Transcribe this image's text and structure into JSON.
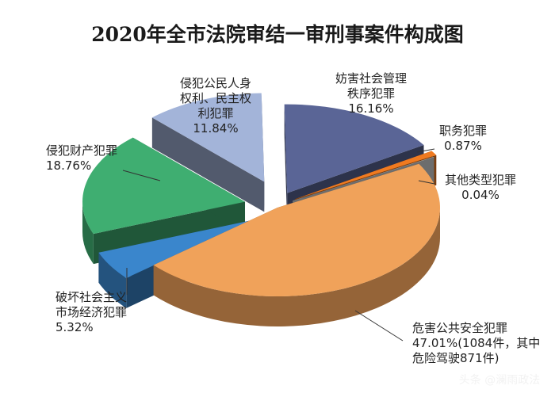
{
  "chart_data": {
    "type": "pie",
    "title": "2020年全市法院审结一审刑事案件构成图",
    "slices": [
      {
        "name": "妨害社会管理秩序犯罪",
        "label_lines": [
          "妨害社会管理",
          "秩序犯罪"
        ],
        "percent_text": "16.16%",
        "value": 16.16,
        "color": "#5a6596"
      },
      {
        "name": "职务犯罪",
        "label_lines": [
          "职务犯罪"
        ],
        "percent_text": "0.87%",
        "value": 0.87,
        "color": "#f07a20"
      },
      {
        "name": "其他类型犯罪",
        "label_lines": [
          "其他类型犯罪"
        ],
        "percent_text": "0.04%",
        "value": 0.04,
        "color": "#d9d9d9"
      },
      {
        "name": "危害公共安全犯罪",
        "label_lines": [
          "危害公共安全犯罪"
        ],
        "percent_text": "47.01%(1084件，其中",
        "extra_lines": [
          "危险驾驶871件)"
        ],
        "value": 47.01,
        "color": "#f0a25a"
      },
      {
        "name": "破坏社会主义市场经济犯罪",
        "label_lines": [
          "破坏社会主义",
          "市场经济犯罪"
        ],
        "percent_text": "5.32%",
        "value": 5.32,
        "color": "#3a86cc"
      },
      {
        "name": "侵犯财产犯罪",
        "label_lines": [
          "侵犯财产犯罪"
        ],
        "percent_text": "18.76%",
        "value": 18.76,
        "color": "#3fae71"
      },
      {
        "name": "侵犯公民人身权利、民主权利犯罪",
        "label_lines": [
          "侵犯公民人身",
          "权利、民主权",
          "利犯罪"
        ],
        "percent_text": "11.84%",
        "value": 11.84,
        "color": "#a3b4d9"
      }
    ]
  },
  "watermark": "头条 @澜雨政法"
}
